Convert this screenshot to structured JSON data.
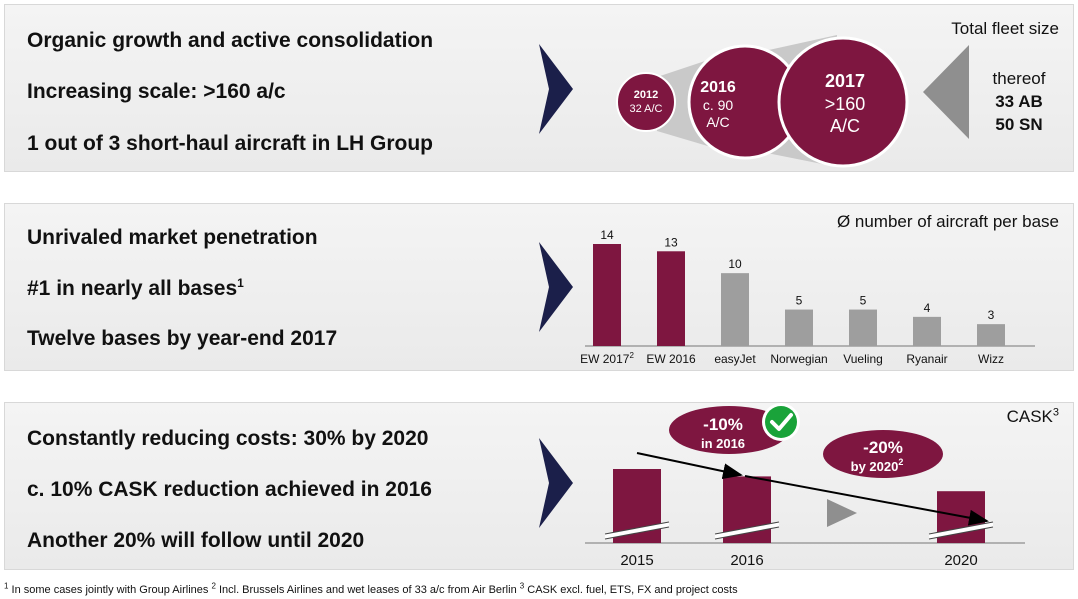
{
  "panel1": {
    "bullets": [
      "Organic growth and active consolidation",
      "Increasing scale: >160 a/c",
      "1 out of 3 short-haul aircraft in LH Group"
    ],
    "label": "Total fleet size",
    "circles": [
      {
        "line1": "2012",
        "line2": "32 A/C",
        "line3": ""
      },
      {
        "line1": "2016",
        "line2": "c. 90",
        "line3": "A/C"
      },
      {
        "line1": "2017",
        "line2": ">160",
        "line3": "A/C"
      }
    ],
    "thereof": {
      "label": "thereof",
      "line1": "33 AB",
      "line2": "50 SN"
    }
  },
  "panel2": {
    "bullets": [
      "Unrivaled market penetration",
      "#1 in nearly all bases",
      "Twelve bases by year-end 2017"
    ],
    "bullet2_sup": "1",
    "label": "Ø number of aircraft per base"
  },
  "panel3": {
    "bullets": [
      "Constantly reducing costs: 30% by 2020",
      "c. 10% CASK reduction achieved in 2016",
      "Another 20% will follow until 2020"
    ],
    "label": "CASK",
    "label_sup": "3",
    "bubbles": [
      {
        "pct": "-10%",
        "text": "in 2016",
        "sup": ""
      },
      {
        "pct": "-20%",
        "text": "by 2020",
        "sup": "2"
      }
    ]
  },
  "footnote": {
    "s1": "1",
    "t1": " In some cases jointly with Group Airlines ",
    "s2": "2",
    "t2": " Incl. Brussels Airlines and wet leases of 33 a/c from Air Berlin ",
    "s3": "3",
    "t3": " CASK excl. fuel, ETS, FX and project costs"
  },
  "chart_data": [
    {
      "type": "bar",
      "categories": [
        "EW 2017",
        "EW 2016",
        "easyJet",
        "Norwegian",
        "Vueling",
        "Ryanair",
        "Wizz"
      ],
      "category_sups": [
        "2",
        "",
        "",
        "",
        "",
        "",
        ""
      ],
      "values": [
        14,
        13,
        10,
        5,
        5,
        4,
        3
      ],
      "colors": [
        "#7e1640",
        "#7e1640",
        "#9e9e9e",
        "#9e9e9e",
        "#9e9e9e",
        "#9e9e9e",
        "#9e9e9e"
      ],
      "title": "Ø number of aircraft per base",
      "ylim": [
        0,
        14
      ]
    },
    {
      "type": "bar",
      "categories": [
        "2015",
        "2016",
        "2020"
      ],
      "values": [
        100,
        90,
        70
      ],
      "title": "CASK",
      "axis_break": true
    }
  ],
  "colors": {
    "brand": "#7e1640",
    "grey": "#9e9e9e",
    "navy": "#1b1f4a",
    "check": "#1aa33a"
  }
}
